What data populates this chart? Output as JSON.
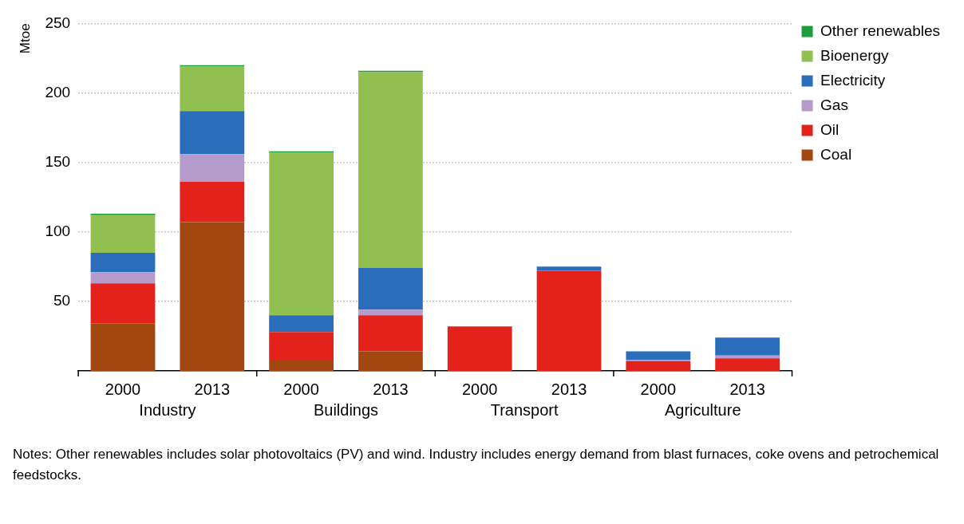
{
  "chart_data": {
    "type": "bar",
    "stacked": true,
    "ylabel": "Mtoe",
    "categories": [
      "2000",
      "2013",
      "2000",
      "2013",
      "2000",
      "2013",
      "2000",
      "2013"
    ],
    "series": [
      {
        "name": "Coal",
        "color": "#a0480f",
        "values": [
          34,
          107,
          8,
          14,
          0,
          0,
          0,
          0
        ]
      },
      {
        "name": "Oil",
        "color": "#e3231b",
        "values": [
          29,
          29,
          20,
          26,
          32,
          72,
          7,
          9
        ]
      },
      {
        "name": "Gas",
        "color": "#b49bcb",
        "values": [
          8,
          20,
          0,
          4,
          0,
          0,
          1,
          2
        ]
      },
      {
        "name": "Electricity",
        "color": "#2a6ebb",
        "values": [
          14,
          31,
          12,
          30,
          0,
          3,
          6,
          13
        ]
      },
      {
        "name": "Bioenergy",
        "color": "#92c050",
        "values": [
          27,
          32,
          117,
          141,
          0,
          0,
          0,
          0
        ]
      },
      {
        "name": "Other renewables",
        "color": "#1a9e3c",
        "values": [
          1,
          1,
          1,
          1,
          0,
          0,
          0,
          0
        ]
      }
    ],
    "ylim": [
      0,
      250
    ],
    "yticks": [
      50,
      100,
      150,
      200,
      250
    ],
    "grid": "y",
    "legend": "right",
    "annotations": [
      "Industry",
      "Buildings",
      "Transport",
      "Agriculture",
      "Notes: Other renewables includes solar photovoltaics (PV) and wind. Industry includes energy demand from blast furnaces, coke ovens and petrochemical feedstocks."
    ]
  }
}
